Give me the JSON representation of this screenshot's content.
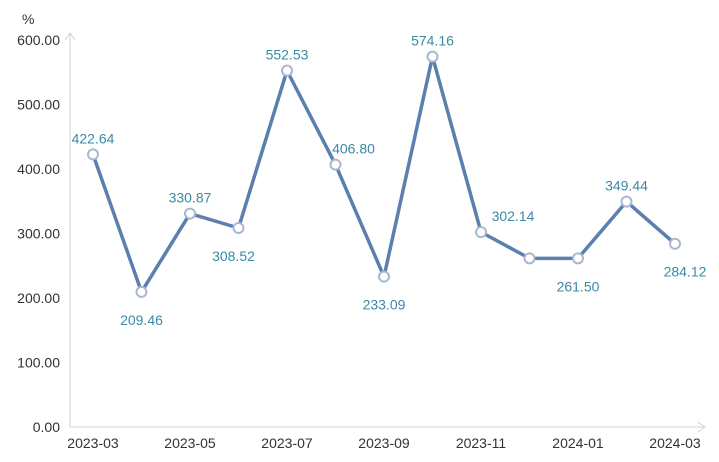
{
  "chart_data": {
    "type": "line",
    "title": "",
    "xlabel": "",
    "ylabel": "",
    "y_unit": "%",
    "ylim": [
      0,
      600
    ],
    "y_ticks": [
      "0.00",
      "100.00",
      "200.00",
      "300.00",
      "400.00",
      "500.00",
      "600.00"
    ],
    "x_tick_labels": [
      "2023-03",
      "2023-05",
      "2023-07",
      "2023-09",
      "2023-11",
      "2024-01",
      "2024-03"
    ],
    "x": [
      "2023-03",
      "2023-04",
      "2023-05",
      "2023-06",
      "2023-07",
      "2023-08",
      "2023-09",
      "2023-10",
      "2023-11",
      "2023-12",
      "2024-01",
      "2024-02",
      "2024-03"
    ],
    "values": [
      422.64,
      209.46,
      330.87,
      308.52,
      552.53,
      406.8,
      233.09,
      574.16,
      302.14,
      261.5,
      261.5,
      349.44,
      284.12
    ],
    "data_labels": [
      "422.64",
      "209.46",
      "330.87",
      "308.52",
      "552.53",
      "406.80",
      "233.09",
      "574.16",
      "302.14",
      "",
      "261.50",
      "349.44",
      "284.12"
    ],
    "grid": false,
    "line_color": "#5b7fae",
    "label_color": "#3a8aa5",
    "marker_fill": "#ffffff",
    "marker_stroke": "#a9b8d0"
  }
}
